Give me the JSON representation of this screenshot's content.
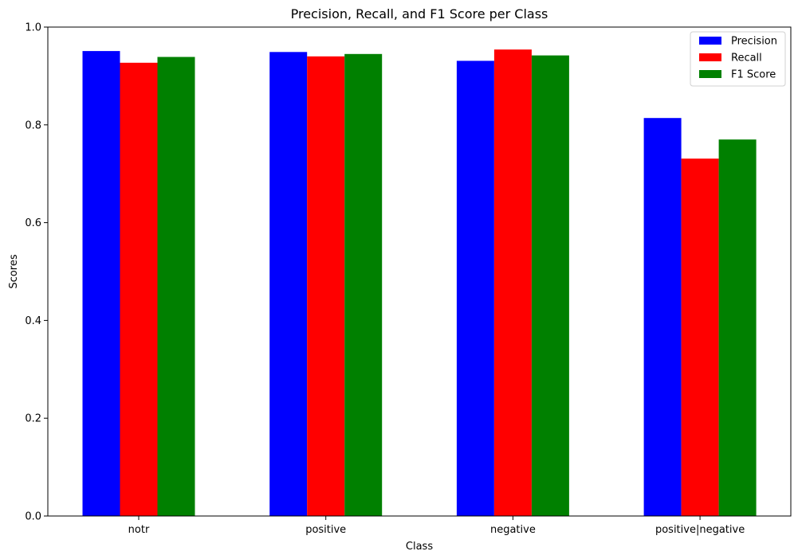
{
  "chart_data": {
    "type": "bar",
    "title": "Precision, Recall, and F1 Score per Class",
    "xlabel": "Class",
    "ylabel": "Scores",
    "ylim": [
      0,
      1.0
    ],
    "yticks": [
      0.0,
      0.2,
      0.4,
      0.6,
      0.8,
      1.0
    ],
    "ytick_labels": [
      "0.0",
      "0.2",
      "0.4",
      "0.6",
      "0.8",
      "1.0"
    ],
    "categories": [
      "notr",
      "positive",
      "negative",
      "positive|negative"
    ],
    "series": [
      {
        "name": "Precision",
        "color": "#0000ff",
        "values": [
          0.951,
          0.949,
          0.931,
          0.814
        ]
      },
      {
        "name": "Recall",
        "color": "#ff0000",
        "values": [
          0.927,
          0.94,
          0.954,
          0.731
        ]
      },
      {
        "name": "F1 Score",
        "color": "#008000",
        "values": [
          0.939,
          0.945,
          0.942,
          0.77
        ]
      }
    ],
    "grid": false,
    "legend": "top-right"
  }
}
